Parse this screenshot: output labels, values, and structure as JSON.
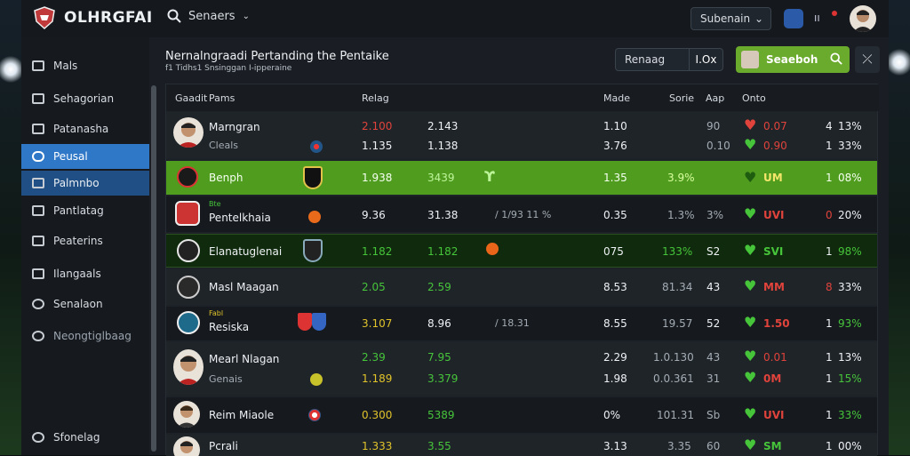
{
  "app": {
    "brand": "OLHRGFAI"
  },
  "topbar": {
    "search_label": "Senaers",
    "filter_label": "Subenain"
  },
  "sidebar": {
    "items": [
      {
        "label": "Mals"
      },
      {
        "label": "Sehagorian"
      },
      {
        "label": "Patanasha"
      },
      {
        "label": "Peusal"
      },
      {
        "label": "Palmnbo"
      },
      {
        "label": "Pantlatag"
      },
      {
        "label": "Peaterins"
      },
      {
        "label": "Ilangaals"
      },
      {
        "label": "Senalaon"
      },
      {
        "label": "Neongtiglbaag"
      },
      {
        "label": "Sfonelag"
      }
    ]
  },
  "page": {
    "title": "Nernalngraadi Pertanding the Pentaike",
    "subtitle": "f1 Tidhs1 Snsinggan I-ipperaine"
  },
  "actions": {
    "box_left": "Renaag",
    "box_right": "I.Ox",
    "green_button": "Seaeboh",
    "close_glyph": "⤫"
  },
  "columns": {
    "col1": "Gaadit",
    "col2": "Pams",
    "rating": "Relag",
    "made": "Made",
    "sorie": "Sorie",
    "avg": "Aap",
    "onto": "Onto"
  },
  "colors": {
    "accent_blue": "#2f78c8",
    "accent_green": "#6aaa2c",
    "row_green": "#4f9c1f",
    "row_dark_green": "#0f2a0c",
    "bad": "#e0433b",
    "good": "#46c43a"
  },
  "rows": [
    {
      "name": "Marngran",
      "sub": "Cleals",
      "r1": "2.100",
      "r1b": "1.135",
      "r2": "2.143",
      "r2b": "1.138",
      "made": "1.10",
      "madeb": "3.76",
      "avg": "90",
      "avgb": "0.10",
      "o1": "0.07",
      "o1b": "0.90",
      "pct": "13%",
      "pctb": "33%",
      "pctp": "4",
      "pctpb": "1"
    },
    {
      "name": "Benph",
      "r1": "1.938",
      "r2": "3439",
      "made": "1.35",
      "sorie": "3.9%",
      "o1": "UM",
      "pct": "08%",
      "pctp": "1"
    },
    {
      "tag": "Bte",
      "name": "Pentelkhaia",
      "r1": "9.36",
      "r2": "31.38",
      "mini": "/ 1/93 11 %",
      "made": "0.35",
      "sorie": "1.3%",
      "avg": "3%",
      "o1": "UVI",
      "pct": "20%",
      "pctp": "0"
    },
    {
      "name": "Elanatuglenai",
      "r1": "1.182",
      "r2": "1.182",
      "made": "075",
      "sorie": "133%",
      "avg": "S2",
      "o1": "SVI",
      "pct": "98%",
      "pctp": "1"
    },
    {
      "name": "Masl Maagan",
      "r1": "2.05",
      "r2": "2.59",
      "made": "8.53",
      "sorie": "81.34",
      "avg": "43",
      "o1": "MM",
      "pct": "33%",
      "pctp": "8"
    },
    {
      "tag": "Fabl",
      "name": "Resiska",
      "r1": "3.107",
      "r2": "8.96",
      "mini": "/ 18.31",
      "made": "8.55",
      "sorie": "19.57",
      "avg": "52",
      "o1": "1.50",
      "pct": "93%",
      "pctp": "1"
    },
    {
      "name": "Mearl Nlagan",
      "sub": "Genais",
      "r1": "2.39",
      "r1b": "1.189",
      "r2": "7.95",
      "r2b": "3.379",
      "made": "2.29",
      "madeb": "1.98",
      "sorie": "1.0.130",
      "sorieb": "0.0.361",
      "avg": "43",
      "avgb": "31",
      "o1": "0.01",
      "o1b": "0M",
      "pct": "13%",
      "pctb": "15%",
      "pctp": "1",
      "pctpb": "1"
    },
    {
      "name": "Reim Miaole",
      "r1": "0.300",
      "r2": "5389",
      "made": "0%",
      "sorie": "101.31",
      "avg": "Sb",
      "o1": "UVI",
      "pct": "33%",
      "pctp": "1"
    },
    {
      "name": "Pcrali",
      "r1": "1.333",
      "r2": "3.55",
      "made": "3.13",
      "sorie": "3.35",
      "avg": "60",
      "o1": "SM",
      "pct": "00%",
      "pctp": "1"
    }
  ]
}
